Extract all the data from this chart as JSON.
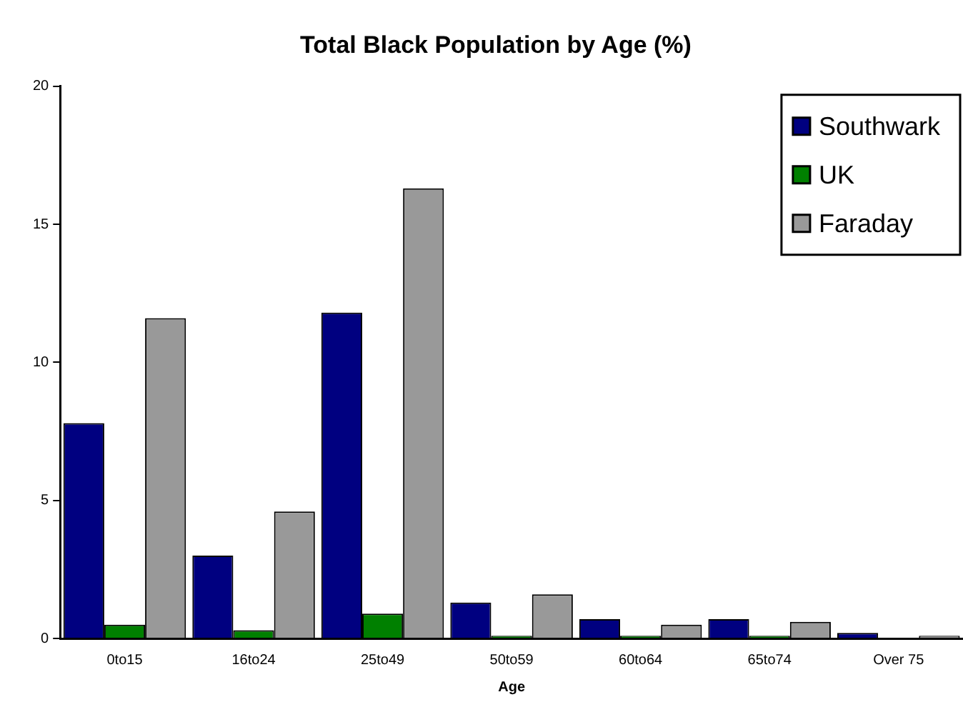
{
  "chart_data": {
    "type": "bar",
    "title": "Total Black Population by Age (%)",
    "xlabel": "Age",
    "categories": [
      "0to15",
      "16to24",
      "25to49",
      "50to59",
      "60to64",
      "65to74",
      "Over 75"
    ],
    "series": [
      {
        "name": "Southwark",
        "color": "#000080",
        "values": [
          7.8,
          3.0,
          11.8,
          1.3,
          0.7,
          0.7,
          0.2
        ]
      },
      {
        "name": "UK",
        "color": "#008000",
        "values": [
          0.5,
          0.3,
          0.9,
          0.1,
          0.1,
          0.1,
          0
        ]
      },
      {
        "name": "Faraday",
        "color": "#999999",
        "values": [
          11.6,
          4.6,
          16.3,
          1.6,
          0.5,
          0.6,
          0.1
        ]
      }
    ],
    "ylim": [
      0,
      20
    ],
    "yticks": [
      0,
      5,
      10,
      15,
      20
    ],
    "grid": false,
    "legend": "top right"
  }
}
